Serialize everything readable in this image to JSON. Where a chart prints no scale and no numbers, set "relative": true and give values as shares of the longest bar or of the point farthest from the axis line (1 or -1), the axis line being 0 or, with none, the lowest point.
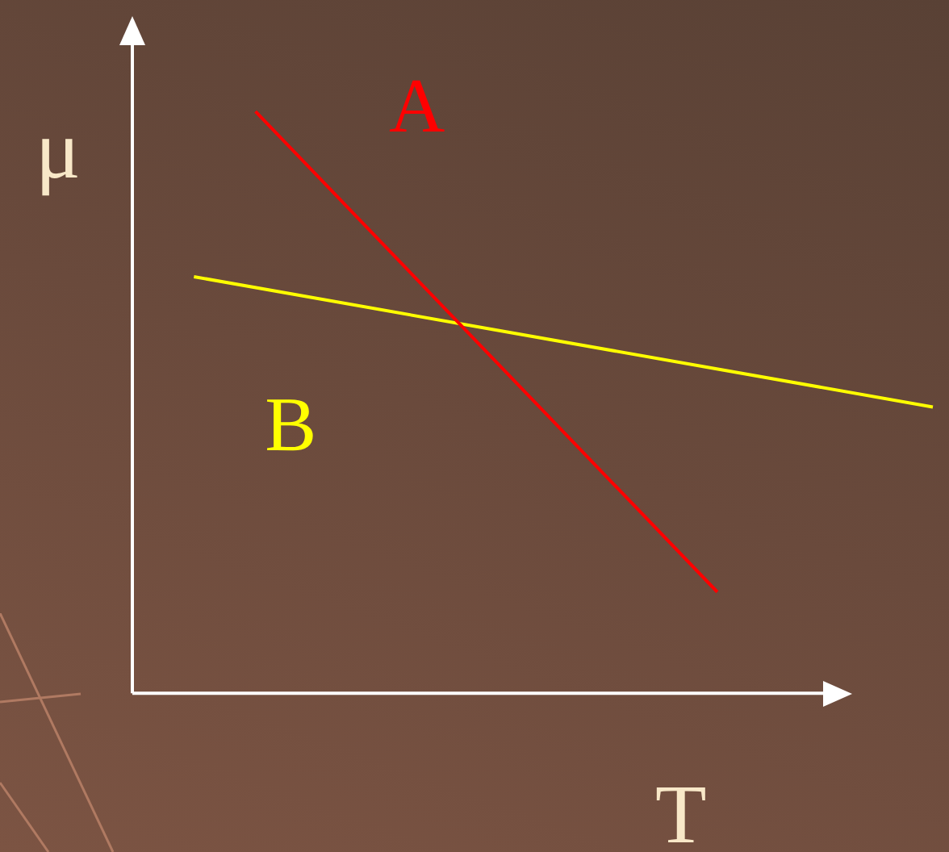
{
  "chart_data": {
    "type": "line",
    "xlabel": "T",
    "ylabel": "μ",
    "relative": true,
    "legend": false,
    "grid": false,
    "marker": "none",
    "line_style": "solid",
    "categories": [
      null,
      null,
      null,
      null,
      null,
      null,
      null,
      null,
      null,
      null,
      null,
      null,
      null,
      null,
      null,
      null,
      null,
      null,
      null,
      null,
      null,
      null,
      null,
      null,
      null,
      null,
      null
    ],
    "series": [
      {
        "name": "A",
        "color": "#ff0000",
        "values": [
          null,
          null,
          null,
          null,
          1,
          null,
          null,
          null,
          null,
          null,
          null,
          null,
          null,
          null,
          null,
          null,
          null,
          null,
          null,
          0.174,
          null,
          null,
          null,
          null,
          null,
          null,
          null
        ]
      },
      {
        "name": "B",
        "color": "#ffff00",
        "values": [
          null,
          null,
          0.716,
          null,
          null,
          null,
          null,
          null,
          null,
          null,
          null,
          null,
          null,
          null,
          null,
          null,
          null,
          null,
          null,
          null,
          null,
          null,
          null,
          null,
          null,
          null,
          0.492
        ]
      }
    ]
  }
}
